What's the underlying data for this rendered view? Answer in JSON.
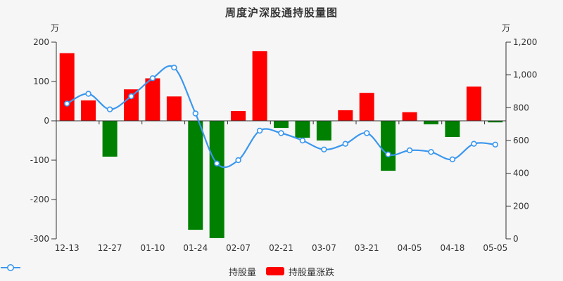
{
  "title": "周度沪深股通持股量图",
  "colors": {
    "background": "#f6f6f6",
    "axis": "#333333",
    "text": "#333333",
    "line": "#3b97ee",
    "marker_fill": "#ffffff",
    "bar_positive": "#fe0000",
    "bar_negative": "#008000"
  },
  "legend": {
    "items": [
      {
        "label": "持股量",
        "symbol": "line-circle"
      },
      {
        "label": "持股量涨跌",
        "symbol": "red-bar"
      }
    ]
  },
  "chart_data": {
    "type": "combo bar+line",
    "title": "周度沪深股通持股量图",
    "x_tick_labels": [
      "12-13",
      "12-27",
      "01-10",
      "01-24",
      "02-07",
      "02-21",
      "03-07",
      "03-21",
      "04-05",
      "04-18",
      "05-05"
    ],
    "x_label_every": 2,
    "left_axis": {
      "unit": "万",
      "min": -300,
      "max": 200,
      "tick_labels": [
        "200",
        "100",
        "0",
        "-100",
        "-200",
        "-300"
      ]
    },
    "right_axis": {
      "unit": "万",
      "min": 0,
      "max": 1200,
      "tick_labels": [
        "1,200",
        "1,000",
        "800",
        "600",
        "400",
        "200",
        "0"
      ]
    },
    "series": [
      {
        "name": "持股量涨跌",
        "type": "bar",
        "axis": "left",
        "color_positive": "#fe0000",
        "color_negative": "#008000",
        "values": [
          172,
          52,
          -91,
          80,
          108,
          62,
          -277,
          -298,
          25,
          177,
          -18,
          -43,
          -50,
          27,
          71,
          -127,
          22,
          -9,
          -41,
          87,
          -4
        ]
      },
      {
        "name": "持股量",
        "type": "line",
        "axis": "right",
        "smooth": true,
        "color": "#3b97ee",
        "values": [
          825,
          885,
          790,
          870,
          980,
          1045,
          765,
          460,
          480,
          660,
          645,
          600,
          545,
          580,
          645,
          515,
          540,
          530,
          485,
          580,
          575
        ]
      }
    ],
    "legend_position": "bottom",
    "grid": false
  }
}
